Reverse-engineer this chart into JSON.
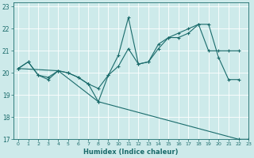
{
  "xlabel": "Humidex (Indice chaleur)",
  "background_color": "#cdeaea",
  "line_color": "#1a6b6b",
  "grid_color": "#ffffff",
  "xlim": [
    -0.5,
    23
  ],
  "ylim": [
    17,
    23.2
  ],
  "yticks": [
    17,
    18,
    19,
    20,
    21,
    22,
    23
  ],
  "xticks": [
    0,
    1,
    2,
    3,
    4,
    5,
    6,
    7,
    8,
    9,
    10,
    11,
    12,
    13,
    14,
    15,
    16,
    17,
    18,
    19,
    20,
    21,
    22,
    23
  ],
  "line1_x": [
    0,
    1,
    2,
    3,
    4,
    5,
    6,
    7,
    8,
    9,
    10,
    11,
    12,
    13,
    14,
    15,
    16,
    17,
    18,
    19,
    20,
    21,
    22
  ],
  "line1_y": [
    20.2,
    20.5,
    19.9,
    19.7,
    20.1,
    20.0,
    19.8,
    19.5,
    19.3,
    19.9,
    20.8,
    22.5,
    20.4,
    20.5,
    21.1,
    21.6,
    21.8,
    22.0,
    22.2,
    22.2,
    20.7,
    19.7,
    19.7
  ],
  "line2_x": [
    0,
    1,
    2,
    3,
    4,
    5,
    6,
    7,
    8,
    9,
    10,
    11,
    12,
    13,
    14,
    15,
    16,
    17,
    18,
    19,
    20,
    21,
    22
  ],
  "line2_y": [
    20.2,
    20.5,
    19.9,
    19.8,
    20.1,
    20.0,
    19.8,
    19.5,
    18.7,
    19.9,
    20.3,
    21.1,
    20.4,
    20.5,
    21.3,
    21.6,
    21.6,
    21.8,
    22.2,
    21.0,
    21.0,
    21.0,
    21.0
  ],
  "line3_x": [
    0,
    4,
    8,
    22,
    23
  ],
  "line3_y": [
    20.2,
    20.1,
    18.7,
    17.0,
    17.0
  ]
}
